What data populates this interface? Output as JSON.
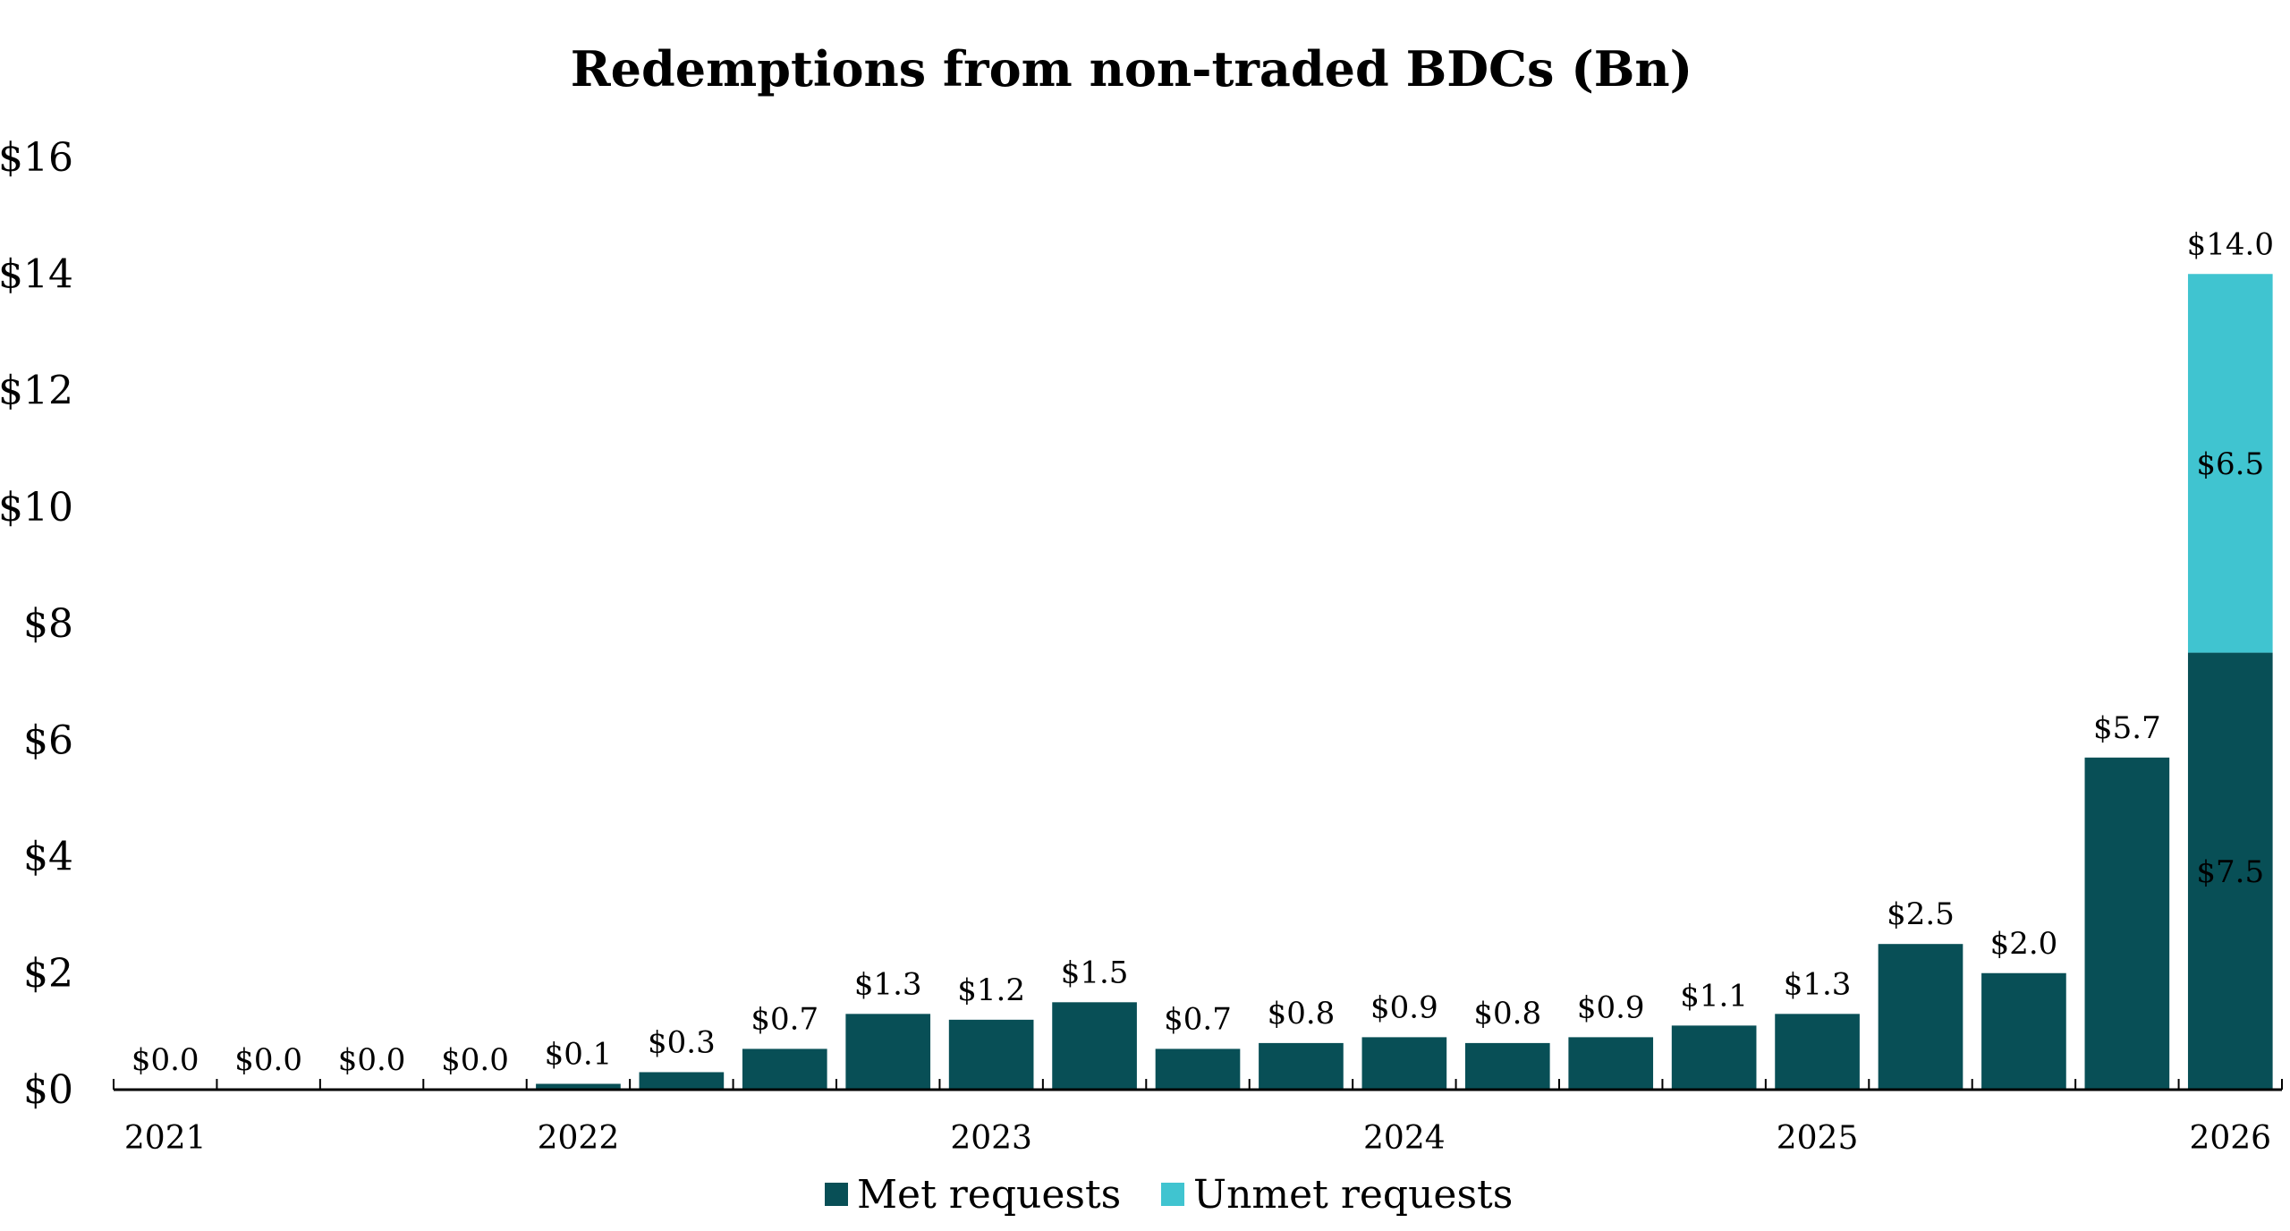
{
  "chart_data": {
    "type": "bar",
    "stacked": true,
    "title": "Redemptions from non-traded BDCs (Bn)",
    "xlabel": "",
    "ylabel": "",
    "ylim": [
      0,
      16
    ],
    "yticks": [
      0,
      2,
      4,
      6,
      8,
      10,
      12,
      14,
      16
    ],
    "ytick_labels": [
      "$0",
      "$2",
      "$4",
      "$6",
      "$8",
      "$10",
      "$12",
      "$14",
      "$16"
    ],
    "grid": false,
    "x_year_labels": [
      {
        "index": 0,
        "label": "2021"
      },
      {
        "index": 4,
        "label": "2022"
      },
      {
        "index": 8,
        "label": "2023"
      },
      {
        "index": 12,
        "label": "2024"
      },
      {
        "index": 16,
        "label": "2025"
      },
      {
        "index": 20,
        "label": "2026"
      }
    ],
    "series": [
      {
        "name": "Met requests",
        "color": "#084f56",
        "values": [
          0,
          0,
          0,
          0,
          0.1,
          0.3,
          0.7,
          1.3,
          1.2,
          1.5,
          0.7,
          0.8,
          0.9,
          0.8,
          0.9,
          1.1,
          1.3,
          2.5,
          2.0,
          5.7,
          7.5
        ]
      },
      {
        "name": "Unmet requests",
        "color": "#40c4d0",
        "values": [
          0,
          0,
          0,
          0,
          0,
          0,
          0,
          0,
          0,
          0,
          0,
          0,
          0,
          0,
          0,
          0,
          0,
          0,
          0,
          0,
          6.5
        ]
      }
    ],
    "total_labels": [
      "$0.0",
      "$0.0",
      "$0.0",
      "$0.0",
      "$0.1",
      "$0.3",
      "$0.7",
      "$1.3",
      "$1.2",
      "$1.5",
      "$0.7",
      "$0.8",
      "$0.9",
      "$0.8",
      "$0.9",
      "$1.1",
      "$1.3",
      "$2.5",
      "$2.0",
      "$5.7",
      "$14.0"
    ],
    "segment_labels": [
      {
        "index": 20,
        "met": "$7.5",
        "unmet": "$6.5"
      }
    ],
    "legend_position": "bottom-center"
  }
}
